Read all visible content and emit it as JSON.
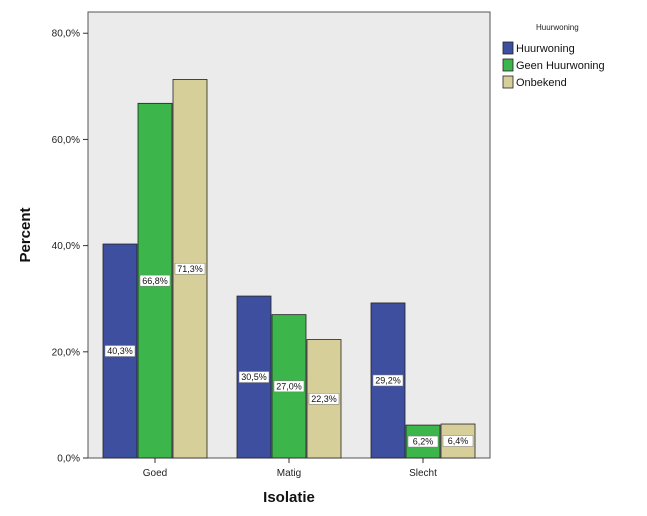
{
  "chart_data": {
    "type": "bar",
    "title": "",
    "xlabel": "Isolatie",
    "ylabel": "Percent",
    "categories": [
      "Goed",
      "Matig",
      "Slecht"
    ],
    "ylim": [
      0,
      84
    ],
    "yticks": [
      {
        "value": 0,
        "label": "0,0%"
      },
      {
        "value": 20,
        "label": "20,0%"
      },
      {
        "value": 40,
        "label": "40,0%"
      },
      {
        "value": 60,
        "label": "60,0%"
      },
      {
        "value": 80,
        "label": "80,0%"
      }
    ],
    "legend_title": "Huurwoning",
    "legend_position": "right",
    "grid": false,
    "plot_background": "#ebebeb",
    "series": [
      {
        "name": "Huurwoning",
        "color": "#3e4fa0",
        "values": [
          40.3,
          30.5,
          29.2
        ],
        "labels": [
          "40,3%",
          "30,5%",
          "29,2%"
        ]
      },
      {
        "name": "Geen Huurwoning",
        "color": "#3cb54a",
        "values": [
          66.8,
          27.0,
          6.2
        ],
        "labels": [
          "66,8%",
          "27,0%",
          "6,2%"
        ]
      },
      {
        "name": "Onbekend",
        "color": "#d7cf9a",
        "values": [
          71.3,
          22.3,
          6.4
        ],
        "labels": [
          "71,3%",
          "22,3%",
          "6,4%"
        ]
      }
    ]
  }
}
